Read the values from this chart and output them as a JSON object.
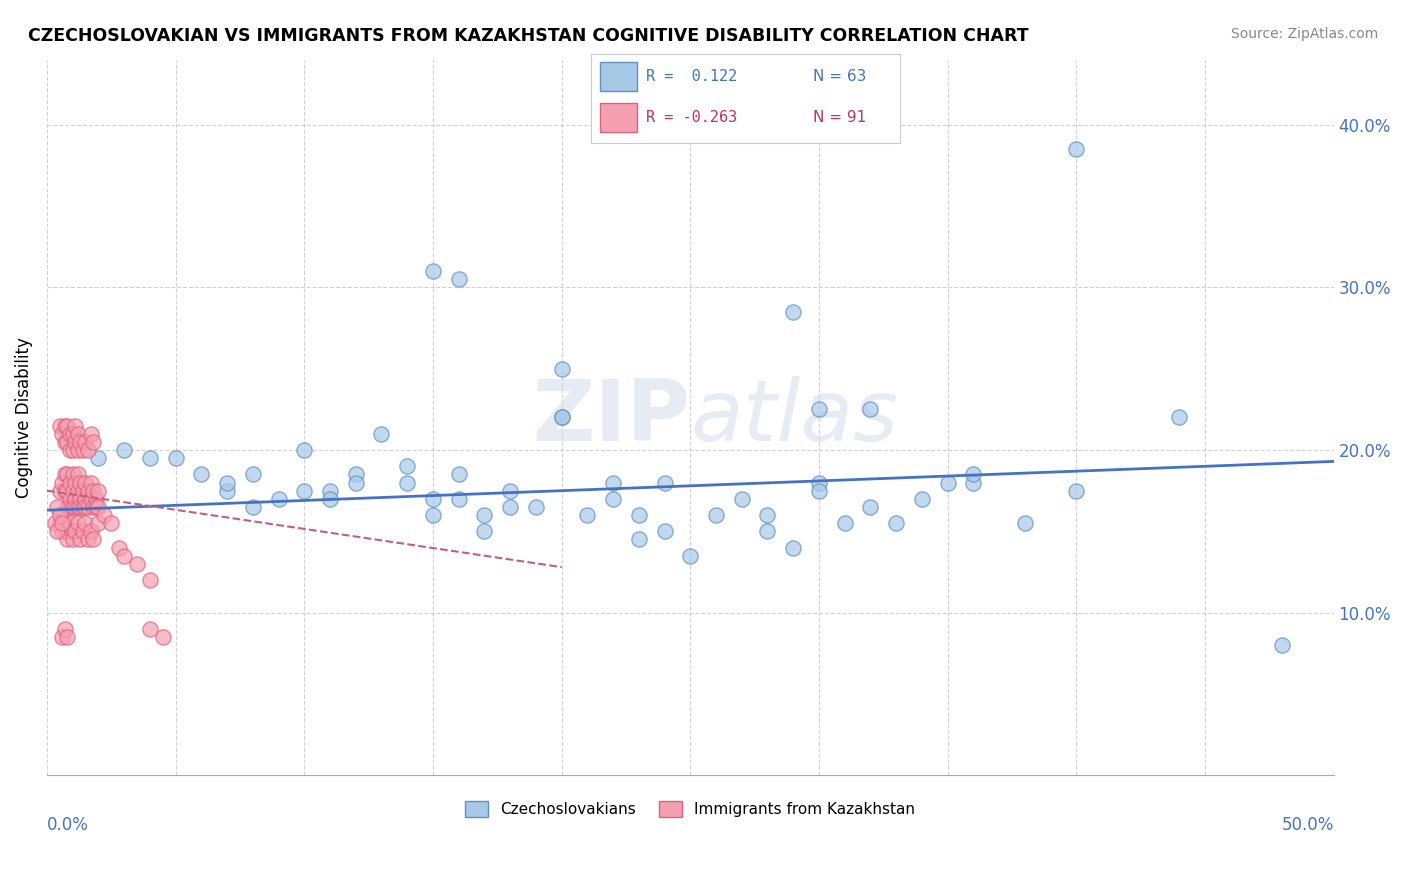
{
  "title": "CZECHOSLOVAKIAN VS IMMIGRANTS FROM KAZAKHSTAN COGNITIVE DISABILITY CORRELATION CHART",
  "source": "Source: ZipAtlas.com",
  "ylabel": "Cognitive Disability",
  "xlim": [
    0.0,
    0.5
  ],
  "ylim": [
    0.0,
    0.44
  ],
  "yticks": [
    0.1,
    0.2,
    0.3,
    0.4
  ],
  "ytick_labels": [
    "10.0%",
    "20.0%",
    "30.0%",
    "40.0%"
  ],
  "xtick_labels": [
    "0.0%",
    "",
    "",
    "",
    "",
    "",
    "",
    "",
    "",
    "",
    "50.0%"
  ],
  "legend_r_blue": "R =  0.122",
  "legend_n_blue": "N = 63",
  "legend_r_pink": "R = -0.263",
  "legend_n_pink": "N = 91",
  "blue_color": "#a8c8e8",
  "pink_color": "#f4a0b0",
  "blue_fill_color": "#a8c8e8",
  "pink_fill_color": "#f4a0b0",
  "blue_edge_color": "#6090c0",
  "pink_edge_color": "#e06080",
  "blue_line_color": "#4472c4",
  "pink_line_color": "#c06080",
  "watermark_text": "ZIPatlas",
  "blue_scatter": [
    [
      0.02,
      0.195
    ],
    [
      0.03,
      0.2
    ],
    [
      0.04,
      0.195
    ],
    [
      0.05,
      0.195
    ],
    [
      0.06,
      0.185
    ],
    [
      0.07,
      0.175
    ],
    [
      0.07,
      0.18
    ],
    [
      0.08,
      0.165
    ],
    [
      0.08,
      0.185
    ],
    [
      0.09,
      0.17
    ],
    [
      0.1,
      0.175
    ],
    [
      0.1,
      0.2
    ],
    [
      0.11,
      0.175
    ],
    [
      0.11,
      0.17
    ],
    [
      0.12,
      0.185
    ],
    [
      0.12,
      0.18
    ],
    [
      0.13,
      0.21
    ],
    [
      0.14,
      0.18
    ],
    [
      0.14,
      0.19
    ],
    [
      0.15,
      0.17
    ],
    [
      0.15,
      0.16
    ],
    [
      0.16,
      0.185
    ],
    [
      0.16,
      0.17
    ],
    [
      0.17,
      0.15
    ],
    [
      0.17,
      0.16
    ],
    [
      0.18,
      0.175
    ],
    [
      0.18,
      0.165
    ],
    [
      0.19,
      0.165
    ],
    [
      0.2,
      0.22
    ],
    [
      0.2,
      0.22
    ],
    [
      0.21,
      0.16
    ],
    [
      0.22,
      0.18
    ],
    [
      0.22,
      0.17
    ],
    [
      0.23,
      0.145
    ],
    [
      0.23,
      0.16
    ],
    [
      0.24,
      0.18
    ],
    [
      0.24,
      0.15
    ],
    [
      0.25,
      0.135
    ],
    [
      0.26,
      0.16
    ],
    [
      0.27,
      0.17
    ],
    [
      0.28,
      0.15
    ],
    [
      0.28,
      0.16
    ],
    [
      0.29,
      0.14
    ],
    [
      0.3,
      0.18
    ],
    [
      0.3,
      0.175
    ],
    [
      0.31,
      0.155
    ],
    [
      0.32,
      0.165
    ],
    [
      0.33,
      0.155
    ],
    [
      0.34,
      0.17
    ],
    [
      0.36,
      0.18
    ],
    [
      0.38,
      0.155
    ],
    [
      0.4,
      0.175
    ],
    [
      0.2,
      0.25
    ],
    [
      0.29,
      0.285
    ],
    [
      0.32,
      0.225
    ],
    [
      0.3,
      0.225
    ],
    [
      0.16,
      0.305
    ],
    [
      0.15,
      0.31
    ],
    [
      0.35,
      0.18
    ],
    [
      0.36,
      0.185
    ],
    [
      0.4,
      0.385
    ],
    [
      0.44,
      0.22
    ],
    [
      0.48,
      0.08
    ]
  ],
  "pink_scatter": [
    [
      0.005,
      0.175
    ],
    [
      0.006,
      0.18
    ],
    [
      0.007,
      0.185
    ],
    [
      0.007,
      0.175
    ],
    [
      0.008,
      0.185
    ],
    [
      0.008,
      0.175
    ],
    [
      0.008,
      0.165
    ],
    [
      0.009,
      0.18
    ],
    [
      0.009,
      0.17
    ],
    [
      0.009,
      0.165
    ],
    [
      0.01,
      0.175
    ],
    [
      0.01,
      0.185
    ],
    [
      0.01,
      0.165
    ],
    [
      0.011,
      0.18
    ],
    [
      0.011,
      0.17
    ],
    [
      0.011,
      0.165
    ],
    [
      0.012,
      0.185
    ],
    [
      0.012,
      0.175
    ],
    [
      0.012,
      0.165
    ],
    [
      0.013,
      0.18
    ],
    [
      0.013,
      0.17
    ],
    [
      0.013,
      0.165
    ],
    [
      0.014,
      0.175
    ],
    [
      0.014,
      0.165
    ],
    [
      0.015,
      0.18
    ],
    [
      0.015,
      0.17
    ],
    [
      0.015,
      0.165
    ],
    [
      0.016,
      0.175
    ],
    [
      0.016,
      0.165
    ],
    [
      0.017,
      0.18
    ],
    [
      0.017,
      0.17
    ],
    [
      0.018,
      0.175
    ],
    [
      0.018,
      0.165
    ],
    [
      0.019,
      0.17
    ],
    [
      0.019,
      0.165
    ],
    [
      0.02,
      0.175
    ],
    [
      0.02,
      0.165
    ],
    [
      0.005,
      0.215
    ],
    [
      0.006,
      0.21
    ],
    [
      0.007,
      0.215
    ],
    [
      0.007,
      0.205
    ],
    [
      0.008,
      0.215
    ],
    [
      0.008,
      0.205
    ],
    [
      0.009,
      0.21
    ],
    [
      0.009,
      0.2
    ],
    [
      0.01,
      0.21
    ],
    [
      0.01,
      0.2
    ],
    [
      0.011,
      0.215
    ],
    [
      0.011,
      0.205
    ],
    [
      0.012,
      0.21
    ],
    [
      0.012,
      0.2
    ],
    [
      0.013,
      0.205
    ],
    [
      0.014,
      0.2
    ],
    [
      0.015,
      0.205
    ],
    [
      0.016,
      0.2
    ],
    [
      0.017,
      0.21
    ],
    [
      0.018,
      0.205
    ],
    [
      0.005,
      0.155
    ],
    [
      0.006,
      0.15
    ],
    [
      0.007,
      0.155
    ],
    [
      0.008,
      0.15
    ],
    [
      0.008,
      0.145
    ],
    [
      0.009,
      0.155
    ],
    [
      0.01,
      0.15
    ],
    [
      0.01,
      0.145
    ],
    [
      0.011,
      0.15
    ],
    [
      0.012,
      0.155
    ],
    [
      0.013,
      0.145
    ],
    [
      0.014,
      0.15
    ],
    [
      0.015,
      0.155
    ],
    [
      0.016,
      0.145
    ],
    [
      0.017,
      0.15
    ],
    [
      0.018,
      0.145
    ],
    [
      0.003,
      0.155
    ],
    [
      0.004,
      0.15
    ],
    [
      0.004,
      0.165
    ],
    [
      0.005,
      0.16
    ],
    [
      0.006,
      0.155
    ],
    [
      0.02,
      0.155
    ],
    [
      0.022,
      0.16
    ],
    [
      0.025,
      0.155
    ],
    [
      0.028,
      0.14
    ],
    [
      0.03,
      0.135
    ],
    [
      0.035,
      0.13
    ],
    [
      0.04,
      0.12
    ],
    [
      0.006,
      0.085
    ],
    [
      0.007,
      0.09
    ],
    [
      0.008,
      0.085
    ],
    [
      0.04,
      0.09
    ],
    [
      0.045,
      0.085
    ]
  ],
  "blue_trendline_x": [
    0.0,
    0.5
  ],
  "blue_trendline_y": [
    0.163,
    0.193
  ],
  "pink_trendline_x": [
    0.0,
    0.2
  ],
  "pink_trendline_y": [
    0.175,
    0.128
  ]
}
